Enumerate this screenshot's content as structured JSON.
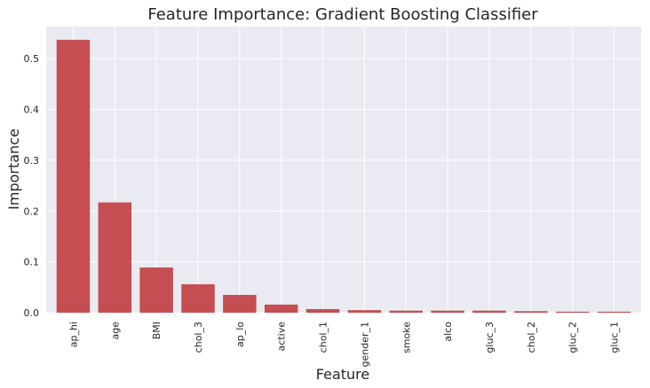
{
  "chart_data": {
    "type": "bar",
    "title": "Feature Importance: Gradient Boosting Classifier",
    "xlabel": "Feature",
    "ylabel": "Importance",
    "categories": [
      "ap_hi",
      "age",
      "BMI",
      "chol_3",
      "ap_lo",
      "active",
      "chol_1",
      "gender_1",
      "smoke",
      "alco",
      "gluc_3",
      "chol_2",
      "gluc_2",
      "gluc_1"
    ],
    "values": [
      0.537,
      0.217,
      0.089,
      0.056,
      0.035,
      0.016,
      0.007,
      0.005,
      0.004,
      0.004,
      0.004,
      0.003,
      0.002,
      0.002
    ],
    "ylim": [
      0,
      0.563
    ],
    "yticks": [
      0.0,
      0.1,
      0.2,
      0.3,
      0.4,
      0.5
    ],
    "ytick_labels": [
      "0.0",
      "0.1",
      "0.2",
      "0.3",
      "0.4",
      "0.5"
    ],
    "grid": true,
    "bar_color": "#c44e52",
    "background_color": "#eaeaf2",
    "grid_color": "#ffffff"
  }
}
